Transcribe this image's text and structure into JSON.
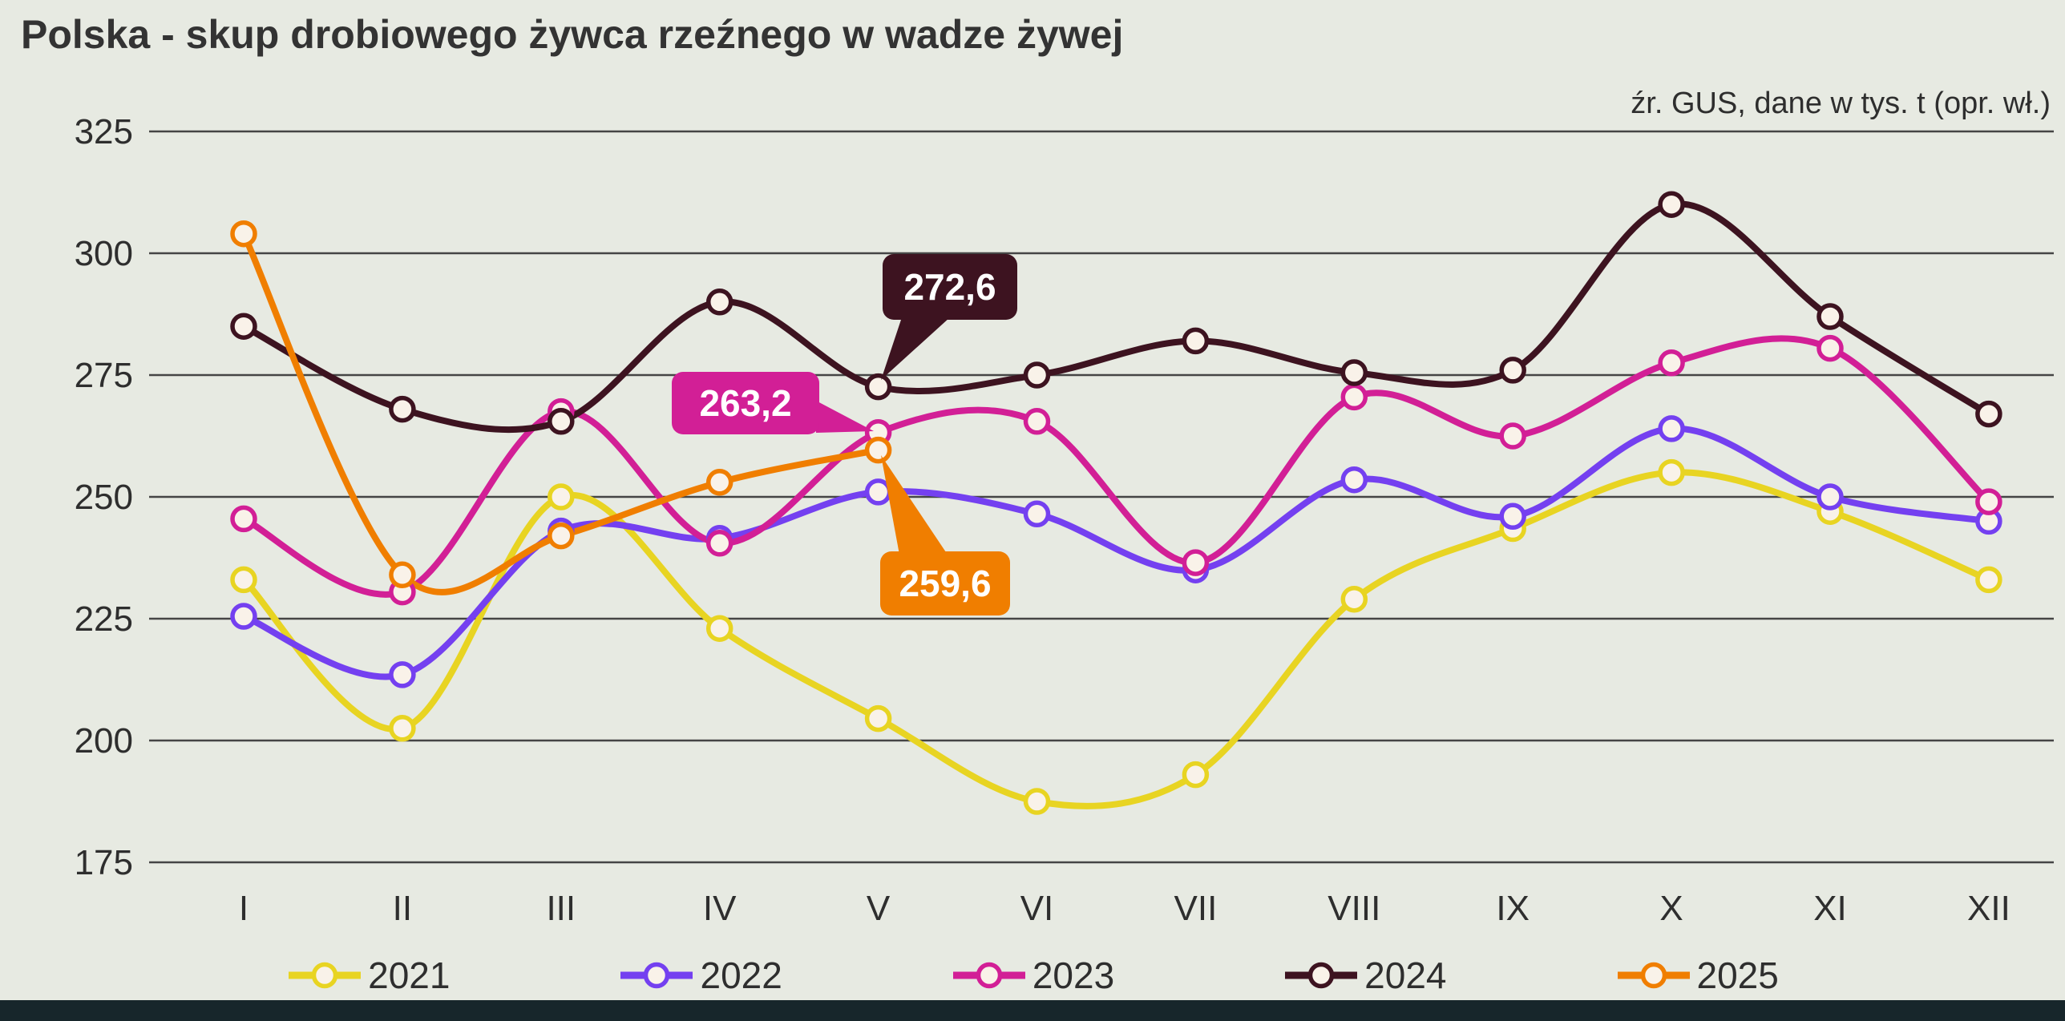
{
  "header": {
    "title": "Polska - skup drobiowego żywca rzeźnego w wadze żywej",
    "source_note": "źr. GUS, dane w tys. t (opr. wł.)"
  },
  "chart_data": {
    "type": "line",
    "title": "Polska - skup drobiowego żywca rzeźnego w wadze żywej",
    "subtitle": "źr. GUS, dane w tys. t (opr. wł.)",
    "unit": "tys. t",
    "categories": [
      "I",
      "II",
      "III",
      "IV",
      "V",
      "VI",
      "VII",
      "VIII",
      "IX",
      "X",
      "XI",
      "XII"
    ],
    "ylim": [
      175,
      325
    ],
    "yticks": [
      175,
      200,
      225,
      250,
      275,
      300,
      325
    ],
    "grid": "horizontal",
    "legend_position": "bottom",
    "marker_fill": "#f9f2e9",
    "axis_text_color": "#2e2e2e",
    "gridline_color": "#454545",
    "series": [
      {
        "name": "2021",
        "color": "#e8d422",
        "values": [
          233,
          202.5,
          250,
          223,
          204.5,
          187.5,
          193,
          229,
          243.5,
          255,
          247,
          233
        ]
      },
      {
        "name": "2022",
        "color": "#7440f0",
        "values": [
          225.5,
          213.5,
          243,
          241.5,
          251,
          246.5,
          235,
          253.5,
          246,
          264,
          250,
          245
        ]
      },
      {
        "name": "2023",
        "color": "#d21f96",
        "values": [
          245.5,
          230.5,
          267.5,
          240.5,
          263.2,
          265.5,
          236.5,
          270.5,
          262.5,
          277.5,
          280.5,
          249
        ]
      },
      {
        "name": "2024",
        "color": "#3d1320",
        "values": [
          285,
          268,
          265.5,
          290,
          272.6,
          275,
          282,
          275.5,
          276,
          310,
          287,
          267
        ]
      },
      {
        "name": "2025",
        "color": "#f07e00",
        "values": [
          304,
          234,
          242,
          253,
          259.6
        ]
      }
    ],
    "callouts": [
      {
        "series": "2024",
        "category": "V",
        "label": "272,6",
        "color": "#3d1320",
        "text_color": "#ffffff"
      },
      {
        "series": "2023",
        "category": "V",
        "label": "263,2",
        "color": "#d21f96",
        "text_color": "#ffffff"
      },
      {
        "series": "2025",
        "category": "V",
        "label": "259,6",
        "color": "#f07e00",
        "text_color": "#ffffff"
      }
    ]
  }
}
